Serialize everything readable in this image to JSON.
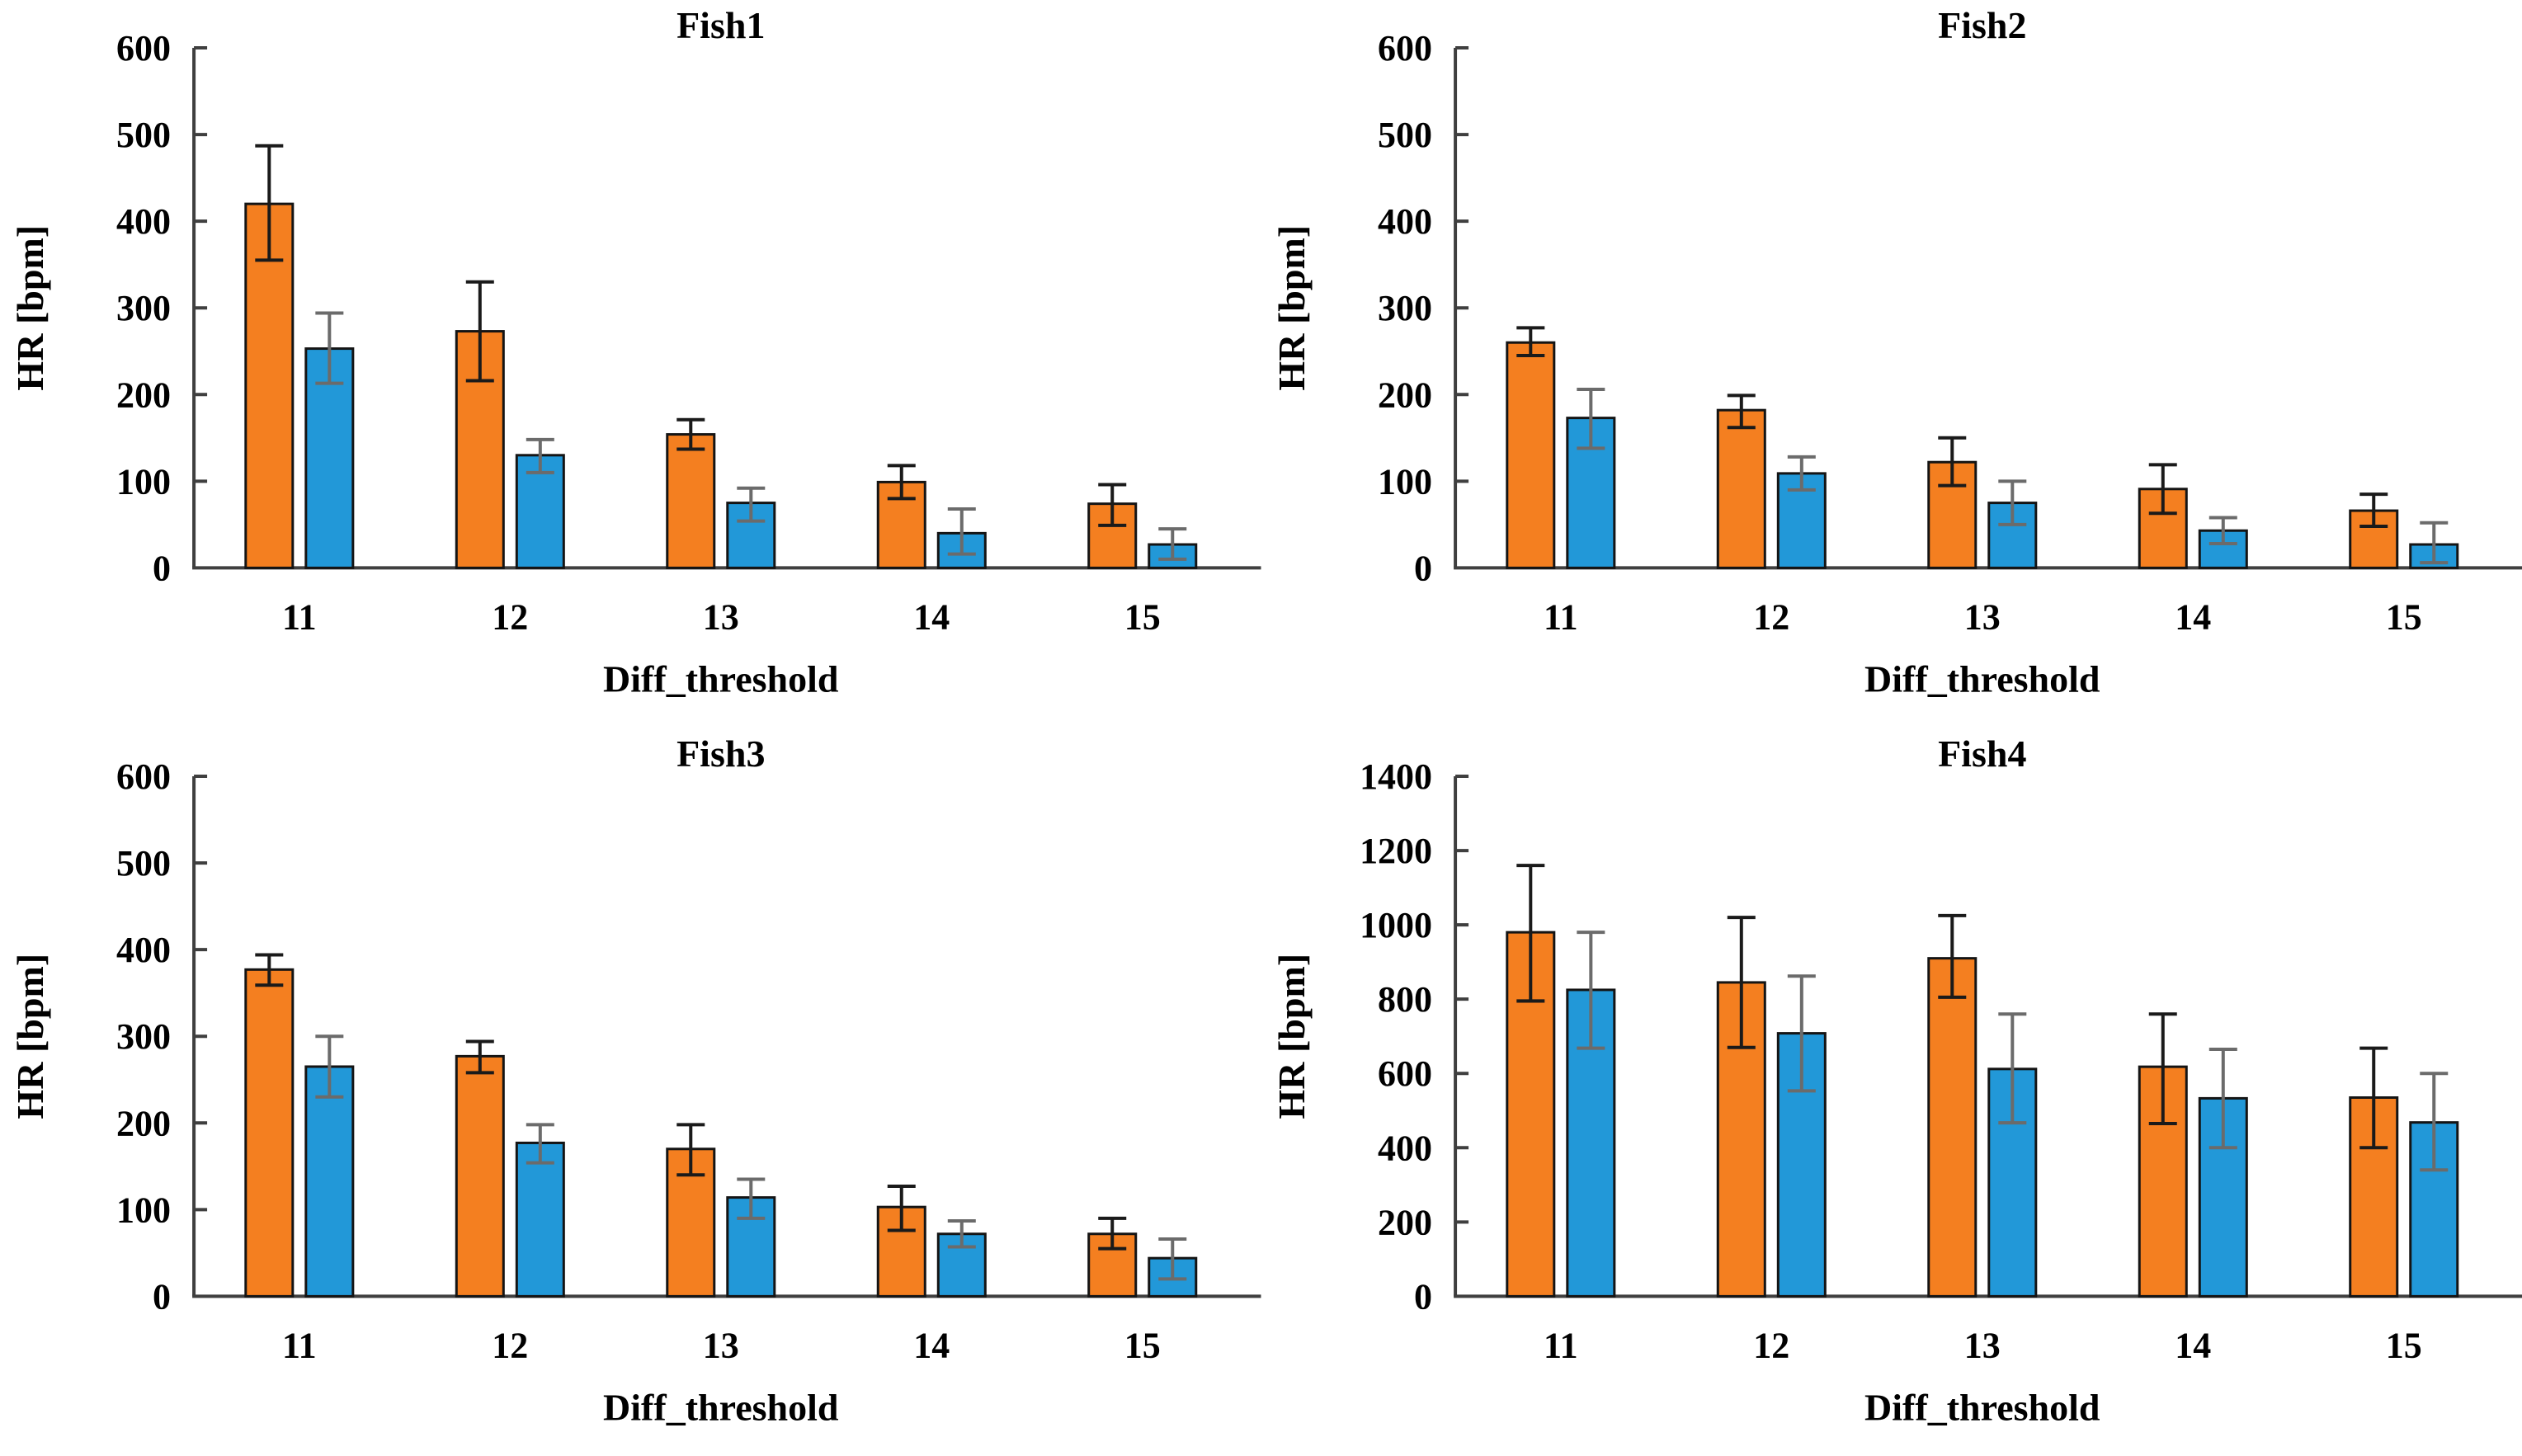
{
  "figure": {
    "background": "#ffffff",
    "text_color": "#000000",
    "axis_color": "#3f3f3f",
    "bar_border_color": "#141414",
    "series_colors": {
      "orange": "#F47F20",
      "blue": "#2298D8"
    },
    "error_bar_colors": {
      "orange": "#1a1a1a",
      "blue": "#6b6b6b"
    }
  },
  "chart_data": [
    {
      "type": "bar",
      "title": "Fish1",
      "xlabel": "Diff_threshold",
      "ylabel": "HR [bpm]",
      "categories": [
        "11",
        "12",
        "13",
        "14",
        "15"
      ],
      "ylim": [
        0,
        600
      ],
      "ytick_step": 100,
      "grid": false,
      "legend": "none",
      "error_bars": true,
      "series": [
        {
          "name": "orange",
          "color": "#F47F20",
          "values": [
            420,
            273,
            154,
            99,
            74
          ],
          "err_low": [
            355,
            216,
            137,
            80,
            49
          ],
          "err_high": [
            487,
            330,
            171,
            118,
            96
          ]
        },
        {
          "name": "blue",
          "color": "#2298D8",
          "values": [
            253,
            130,
            75,
            40,
            27
          ],
          "err_low": [
            213,
            110,
            54,
            16,
            10
          ],
          "err_high": [
            294,
            148,
            92,
            68,
            45
          ]
        }
      ]
    },
    {
      "type": "bar",
      "title": "Fish2",
      "xlabel": "Diff_threshold",
      "ylabel": "HR [bpm]",
      "categories": [
        "11",
        "12",
        "13",
        "14",
        "15"
      ],
      "ylim": [
        0,
        600
      ],
      "ytick_step": 100,
      "grid": false,
      "legend": "none",
      "error_bars": true,
      "series": [
        {
          "name": "orange",
          "color": "#F47F20",
          "values": [
            260,
            182,
            122,
            91,
            66
          ],
          "err_low": [
            245,
            162,
            95,
            63,
            48
          ],
          "err_high": [
            277,
            199,
            150,
            119,
            85
          ]
        },
        {
          "name": "blue",
          "color": "#2298D8",
          "values": [
            173,
            109,
            75,
            43,
            27
          ],
          "err_low": [
            138,
            90,
            50,
            28,
            6
          ],
          "err_high": [
            206,
            128,
            100,
            58,
            52
          ]
        }
      ]
    },
    {
      "type": "bar",
      "title": "Fish3",
      "xlabel": "Diff_threshold",
      "ylabel": "HR [bpm]",
      "categories": [
        "11",
        "12",
        "13",
        "14",
        "15"
      ],
      "ylim": [
        0,
        600
      ],
      "ytick_step": 100,
      "grid": false,
      "legend": "none",
      "error_bars": true,
      "series": [
        {
          "name": "orange",
          "color": "#F47F20",
          "values": [
            377,
            277,
            170,
            103,
            72
          ],
          "err_low": [
            359,
            258,
            140,
            76,
            55
          ],
          "err_high": [
            394,
            294,
            198,
            127,
            90
          ]
        },
        {
          "name": "blue",
          "color": "#2298D8",
          "values": [
            265,
            177,
            114,
            72,
            44
          ],
          "err_low": [
            230,
            154,
            90,
            57,
            20
          ],
          "err_high": [
            300,
            198,
            135,
            87,
            66
          ]
        }
      ]
    },
    {
      "type": "bar",
      "title": "Fish4",
      "xlabel": "Diff_threshold",
      "ylabel": "HR [bpm]",
      "categories": [
        "11",
        "12",
        "13",
        "14",
        "15"
      ],
      "ylim": [
        0,
        1400
      ],
      "ytick_step": 200,
      "grid": false,
      "legend": "none",
      "error_bars": true,
      "series": [
        {
          "name": "orange",
          "color": "#F47F20",
          "values": [
            980,
            845,
            910,
            618,
            535
          ],
          "err_low": [
            795,
            670,
            805,
            465,
            400
          ],
          "err_high": [
            1160,
            1020,
            1025,
            760,
            668
          ]
        },
        {
          "name": "blue",
          "color": "#2298D8",
          "values": [
            825,
            708,
            612,
            533,
            468
          ],
          "err_low": [
            668,
            553,
            467,
            400,
            340
          ],
          "err_high": [
            980,
            862,
            760,
            665,
            600
          ]
        }
      ]
    }
  ]
}
